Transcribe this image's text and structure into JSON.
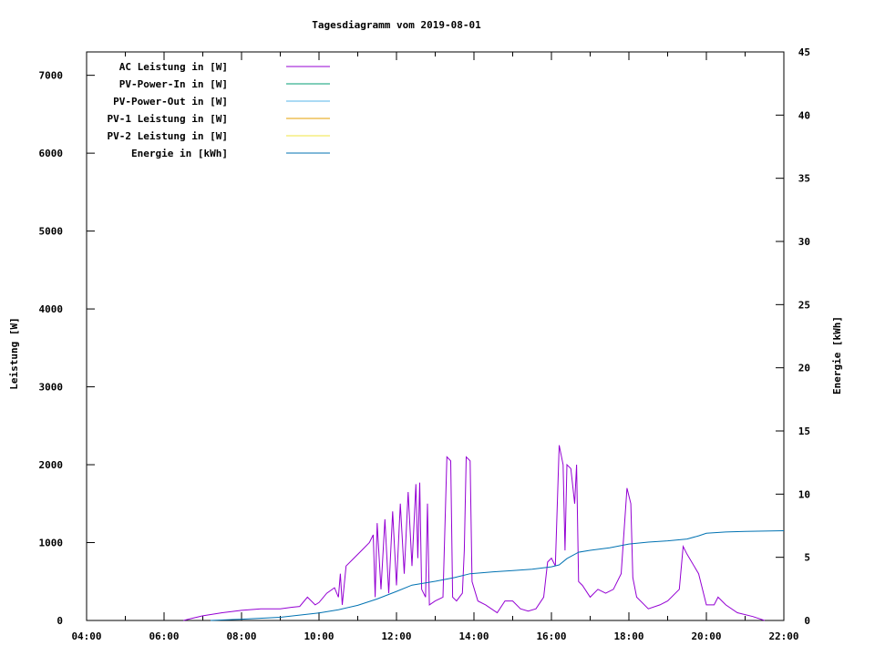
{
  "chart_data": {
    "type": "line",
    "title": "Tagesdiagramm vom 2019-08-01",
    "xlabel": "",
    "ylabel": "Leistung [W]",
    "y2label": "Energie [kWh]",
    "xlim_hours": [
      4,
      22
    ],
    "ylim": [
      0,
      7300
    ],
    "y2lim": [
      0,
      45
    ],
    "x_ticks": [
      "04:00",
      "06:00",
      "08:00",
      "10:00",
      "12:00",
      "14:00",
      "16:00",
      "18:00",
      "20:00",
      "22:00"
    ],
    "y_ticks": [
      "0",
      "1000",
      "2000",
      "3000",
      "4000",
      "5000",
      "6000",
      "7000"
    ],
    "y2_ticks": [
      "0",
      "5",
      "10",
      "15",
      "20",
      "25",
      "30",
      "35",
      "40",
      "45"
    ],
    "grid": false,
    "legend_position": "top-left",
    "series": [
      {
        "name": "AC Leistung in [W]",
        "axis": "y",
        "color": "#9400d3",
        "points": [
          [
            6.5,
            0
          ],
          [
            6.75,
            30
          ],
          [
            7.0,
            60
          ],
          [
            7.5,
            100
          ],
          [
            8.0,
            130
          ],
          [
            8.5,
            150
          ],
          [
            9.0,
            150
          ],
          [
            9.3,
            170
          ],
          [
            9.5,
            180
          ],
          [
            9.7,
            300
          ],
          [
            9.9,
            200
          ],
          [
            10.0,
            230
          ],
          [
            10.2,
            350
          ],
          [
            10.4,
            420
          ],
          [
            10.5,
            300
          ],
          [
            10.55,
            600
          ],
          [
            10.6,
            200
          ],
          [
            10.7,
            700
          ],
          [
            10.9,
            800
          ],
          [
            11.1,
            900
          ],
          [
            11.3,
            1000
          ],
          [
            11.4,
            1100
          ],
          [
            11.45,
            300
          ],
          [
            11.5,
            1250
          ],
          [
            11.6,
            400
          ],
          [
            11.7,
            1300
          ],
          [
            11.8,
            350
          ],
          [
            11.9,
            1400
          ],
          [
            12.0,
            450
          ],
          [
            12.1,
            1500
          ],
          [
            12.2,
            600
          ],
          [
            12.3,
            1650
          ],
          [
            12.4,
            700
          ],
          [
            12.5,
            1750
          ],
          [
            12.55,
            800
          ],
          [
            12.6,
            1770
          ],
          [
            12.65,
            400
          ],
          [
            12.75,
            300
          ],
          [
            12.8,
            1500
          ],
          [
            12.85,
            200
          ],
          [
            13.0,
            250
          ],
          [
            13.2,
            300
          ],
          [
            13.3,
            2100
          ],
          [
            13.4,
            2050
          ],
          [
            13.45,
            300
          ],
          [
            13.55,
            250
          ],
          [
            13.7,
            350
          ],
          [
            13.75,
            900
          ],
          [
            13.8,
            2100
          ],
          [
            13.9,
            2050
          ],
          [
            13.95,
            500
          ],
          [
            14.1,
            250
          ],
          [
            14.3,
            200
          ],
          [
            14.6,
            100
          ],
          [
            14.8,
            250
          ],
          [
            15.0,
            250
          ],
          [
            15.2,
            150
          ],
          [
            15.4,
            120
          ],
          [
            15.6,
            150
          ],
          [
            15.8,
            300
          ],
          [
            15.9,
            750
          ],
          [
            16.0,
            800
          ],
          [
            16.1,
            700
          ],
          [
            16.2,
            2250
          ],
          [
            16.3,
            2000
          ],
          [
            16.35,
            900
          ],
          [
            16.4,
            2000
          ],
          [
            16.5,
            1950
          ],
          [
            16.6,
            1500
          ],
          [
            16.65,
            2000
          ],
          [
            16.7,
            500
          ],
          [
            16.8,
            450
          ],
          [
            17.0,
            300
          ],
          [
            17.2,
            400
          ],
          [
            17.4,
            350
          ],
          [
            17.6,
            400
          ],
          [
            17.8,
            600
          ],
          [
            17.95,
            1700
          ],
          [
            18.05,
            1500
          ],
          [
            18.1,
            550
          ],
          [
            18.2,
            300
          ],
          [
            18.5,
            150
          ],
          [
            18.8,
            200
          ],
          [
            19.0,
            250
          ],
          [
            19.3,
            400
          ],
          [
            19.4,
            950
          ],
          [
            19.5,
            850
          ],
          [
            19.8,
            600
          ],
          [
            20.0,
            200
          ],
          [
            20.2,
            200
          ],
          [
            20.3,
            300
          ],
          [
            20.5,
            200
          ],
          [
            20.8,
            100
          ],
          [
            21.2,
            50
          ],
          [
            21.5,
            0
          ]
        ]
      },
      {
        "name": "PV-Power-In in [W]",
        "axis": "y",
        "color": "#009e73",
        "points": []
      },
      {
        "name": "PV-Power-Out in [W]",
        "axis": "y",
        "color": "#56b4e9",
        "points": []
      },
      {
        "name": "PV-1 Leistung in [W]",
        "axis": "y",
        "color": "#e69f00",
        "points": []
      },
      {
        "name": "PV-2 Leistung in [W]",
        "axis": "y",
        "color": "#f0e442",
        "points": []
      },
      {
        "name": "Energie in [kWh]",
        "axis": "y2",
        "color": "#0072b2",
        "points": [
          [
            7.2,
            0
          ],
          [
            8.0,
            0.1
          ],
          [
            9.0,
            0.25
          ],
          [
            10.0,
            0.6
          ],
          [
            10.5,
            0.85
          ],
          [
            11.0,
            1.2
          ],
          [
            11.5,
            1.7
          ],
          [
            12.0,
            2.3
          ],
          [
            12.4,
            2.8
          ],
          [
            13.0,
            3.1
          ],
          [
            13.5,
            3.4
          ],
          [
            13.9,
            3.7
          ],
          [
            14.5,
            3.85
          ],
          [
            15.0,
            3.95
          ],
          [
            15.5,
            4.05
          ],
          [
            16.0,
            4.25
          ],
          [
            16.2,
            4.4
          ],
          [
            16.4,
            4.9
          ],
          [
            16.7,
            5.4
          ],
          [
            17.0,
            5.55
          ],
          [
            17.5,
            5.75
          ],
          [
            18.0,
            6.05
          ],
          [
            18.5,
            6.2
          ],
          [
            19.0,
            6.3
          ],
          [
            19.5,
            6.45
          ],
          [
            19.8,
            6.7
          ],
          [
            20.0,
            6.9
          ],
          [
            20.5,
            7.0
          ],
          [
            21.0,
            7.05
          ],
          [
            22.0,
            7.1
          ]
        ]
      }
    ]
  }
}
